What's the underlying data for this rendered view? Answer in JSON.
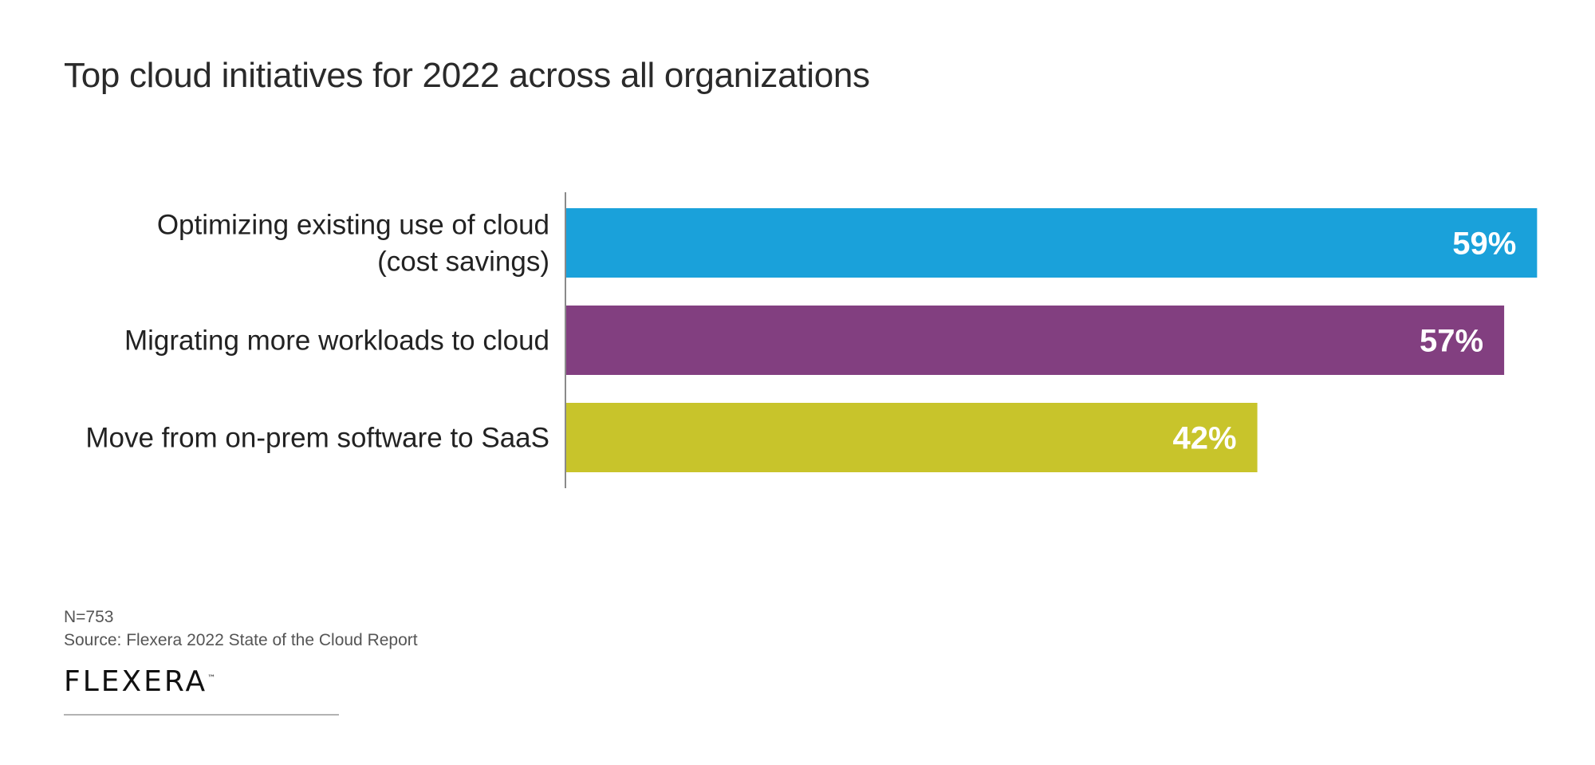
{
  "chart_data": {
    "type": "bar",
    "orientation": "horizontal",
    "title": "Top cloud initiatives for 2022 across all organizations",
    "categories": [
      [
        "Optimizing existing use of cloud",
        "(cost savings)"
      ],
      [
        "Migrating more workloads to cloud"
      ],
      [
        "Move from on-prem software to SaaS"
      ]
    ],
    "values": [
      59,
      57,
      42
    ],
    "value_labels": [
      "59%",
      "57%",
      "42%"
    ],
    "colors": [
      "#1aa1da",
      "#823f80",
      "#c8c42b"
    ],
    "xlim": [
      0,
      60
    ],
    "grid": false,
    "legend": "none"
  },
  "footer": {
    "n": "N=753",
    "source": "Source: Flexera 2022 State of the Cloud Report",
    "logo": "FLEXERA",
    "logo_tm": "™"
  }
}
